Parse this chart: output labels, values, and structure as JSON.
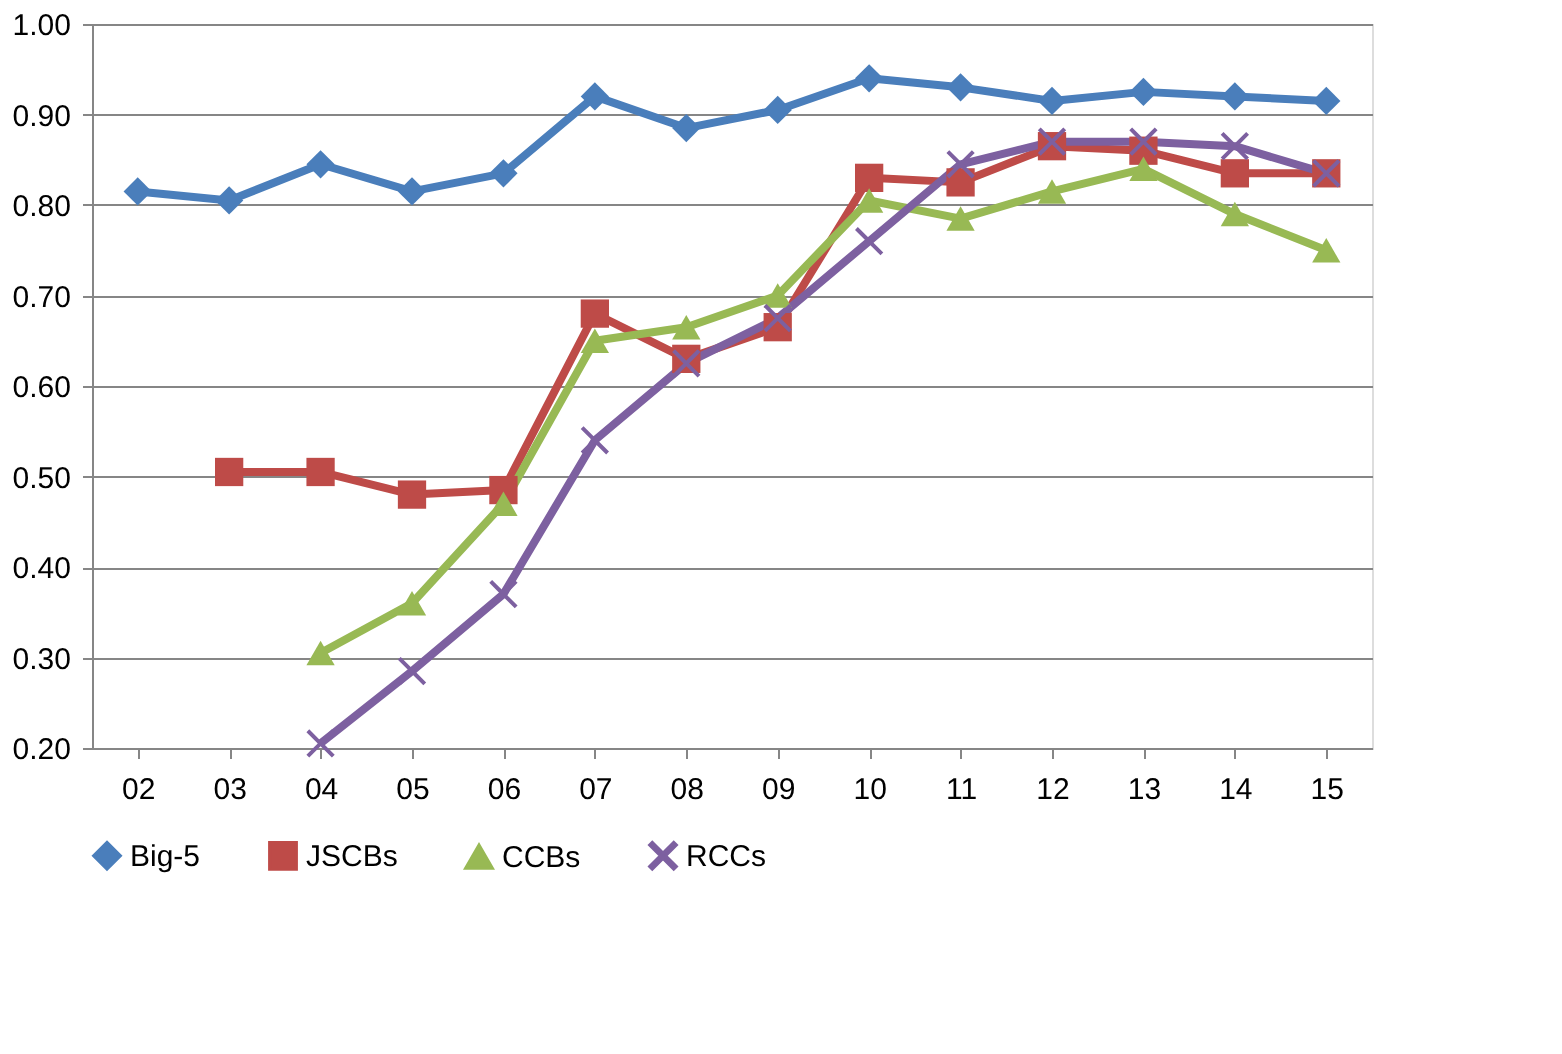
{
  "chart_data": {
    "type": "line",
    "categories": [
      "02",
      "03",
      "04",
      "05",
      "06",
      "07",
      "08",
      "09",
      "10",
      "11",
      "12",
      "13",
      "14",
      "15"
    ],
    "series": [
      {
        "name": "Big-5",
        "color": "#4a7ebb",
        "marker": "diamond",
        "values": [
          0.815,
          0.805,
          0.845,
          0.815,
          0.835,
          0.92,
          0.885,
          0.905,
          0.94,
          0.93,
          0.915,
          0.925,
          0.92,
          0.915
        ]
      },
      {
        "name": "JSCBs",
        "color": "#be4b48",
        "marker": "square",
        "values": [
          null,
          0.505,
          0.505,
          0.48,
          0.485,
          0.68,
          0.63,
          0.665,
          0.83,
          0.825,
          0.865,
          0.86,
          0.835,
          0.835
        ]
      },
      {
        "name": "CCBs",
        "color": "#98b954",
        "marker": "triangle",
        "values": [
          null,
          null,
          0.305,
          0.36,
          0.47,
          0.65,
          0.665,
          0.7,
          0.805,
          0.785,
          0.815,
          0.84,
          0.79,
          0.75
        ]
      },
      {
        "name": "RCCs",
        "color": "#7d60a0",
        "marker": "cross",
        "values": [
          null,
          null,
          0.205,
          0.285,
          0.37,
          0.54,
          0.625,
          0.675,
          0.76,
          0.845,
          0.87,
          0.87,
          0.865,
          0.835
        ]
      }
    ],
    "ylim": [
      0.2,
      1.0
    ],
    "yticks": [
      {
        "value": 0.2,
        "label": "0.20"
      },
      {
        "value": 0.3,
        "label": "0.30"
      },
      {
        "value": 0.4,
        "label": "0.40"
      },
      {
        "value": 0.5,
        "label": "0.50"
      },
      {
        "value": 0.6,
        "label": "0.60"
      },
      {
        "value": 0.7,
        "label": "0.70"
      },
      {
        "value": 0.8,
        "label": "0.80"
      },
      {
        "value": 0.9,
        "label": "0.90"
      },
      {
        "value": 1.0,
        "label": "1.00"
      }
    ],
    "grid": "y",
    "legend": "bottom",
    "line_style": "solid"
  }
}
